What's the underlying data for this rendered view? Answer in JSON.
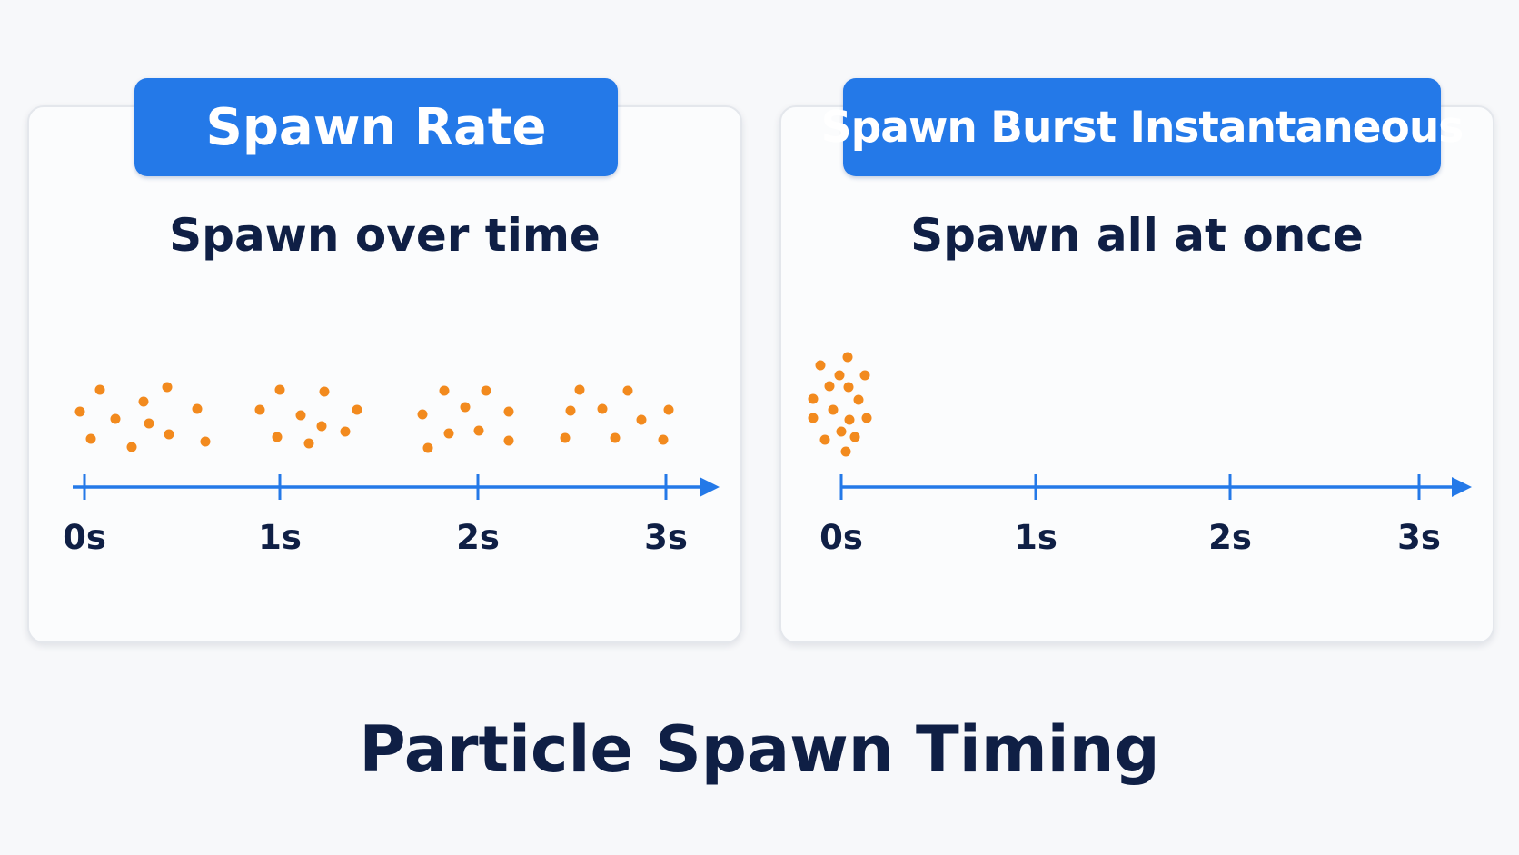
{
  "title": "Particle Spawn Timing",
  "colors": {
    "accent": "#2479e8",
    "particle": "#f28a1e",
    "text": "#0f1f45"
  },
  "panels": [
    {
      "badge": "Spawn Rate",
      "subtitle": "Spawn over time",
      "tick_labels": [
        "0s",
        "1s",
        "2s",
        "3s"
      ]
    },
    {
      "badge": "Spawn Burst Instantaneous",
      "subtitle": "Spawn all at once",
      "tick_labels": [
        "0s",
        "1s",
        "2s",
        "3s"
      ]
    }
  ]
}
